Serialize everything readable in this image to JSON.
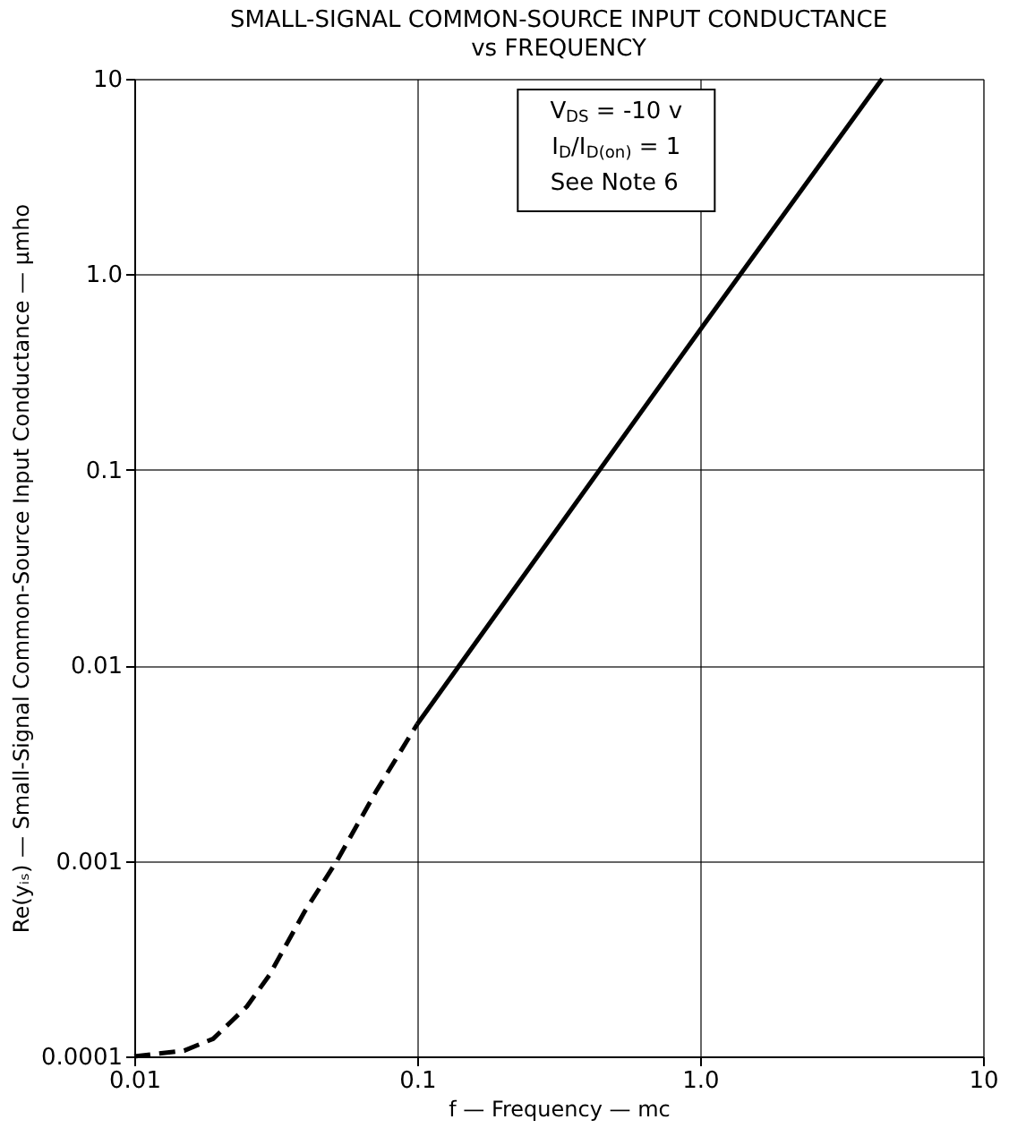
{
  "chart_data": {
    "type": "line",
    "title": "SMALL-SIGNAL COMMON-SOURCE INPUT CONDUCTANCE",
    "subtitle": "vs FREQUENCY",
    "xlabel": "f — Frequency — mc",
    "ylabel": "Re(yᵢₛ) — Small-Signal Common-Source Input Conductance — μmho",
    "log": "xy",
    "grid": true,
    "marker": "none",
    "xlim": [
      0.01,
      10
    ],
    "xticks": [
      0.01,
      0.1,
      {
        "value": 1,
        "label": "1.0"
      },
      10
    ],
    "ylim": [
      0.0001,
      10
    ],
    "yticks": [
      0.0001,
      0.001,
      0.01,
      0.1,
      {
        "value": 1,
        "label": "1.0"
      },
      10
    ],
    "series": [
      {
        "color": "#000000",
        "line_style": "dashed",
        "x": [
          0.01,
          0.015,
          0.019,
          0.025,
          0.03,
          0.04,
          0.052,
          0.072,
          0.1
        ],
        "values": [
          0.0001,
          0.000107,
          0.000123,
          0.00018,
          0.00026,
          0.00055,
          0.001,
          0.0023,
          0.005
        ]
      },
      {
        "color": "#000000",
        "line_style": "solid",
        "x": [
          0.1,
          1.0,
          4.4
        ],
        "values": [
          0.005,
          0.52,
          10
        ]
      }
    ],
    "annotations": [
      "V$_{DS}$ = -10 v",
      "I$_{D}$/I$_{D(on)}$ = 1",
      "See Note 6"
    ]
  }
}
